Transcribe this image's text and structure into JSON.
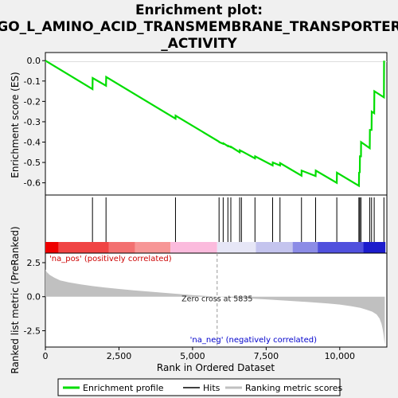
{
  "chart_data": {
    "type": "line",
    "title": "Enrichment plot: GO_L_AMINO_ACID_TRANSMEMBRANE_TRANSPORTER_ACTIVITY",
    "title_lines": [
      "Enrichment plot:",
      "GO_L_AMINO_ACID_TRANSMEMBRANE_TRANSPORTER",
      "_ACTIVITY"
    ],
    "xlabel": "Rank in Ordered Dataset",
    "xlim": [
      0,
      11600
    ],
    "x_ticks": [
      0,
      2500,
      5000,
      7500,
      10000
    ],
    "x_tick_labels": [
      "0",
      "2,500",
      "5,000",
      "7,500",
      "10,000"
    ],
    "es_panel": {
      "ylabel": "Enrichment score (ES)",
      "ylim": [
        -0.66,
        0.04
      ],
      "y_ticks": [
        0.0,
        -0.1,
        -0.2,
        -0.3,
        -0.4,
        -0.5,
        -0.6
      ],
      "y_tick_labels": [
        "0.0",
        "-0.1",
        "-0.2",
        "-0.3",
        "-0.4",
        "-0.5",
        "-0.6"
      ],
      "series": [
        {
          "name": "Enrichment profile",
          "color": "#00dd00",
          "x": [
            0,
            1600,
            1605,
            2060,
            2065,
            4420,
            4425,
            5900,
            5905,
            6040,
            6045,
            6200,
            6205,
            6300,
            6305,
            6600,
            6605,
            6660,
            6665,
            7120,
            7125,
            7720,
            7725,
            7970,
            7975,
            8700,
            8705,
            9180,
            9185,
            9900,
            9905,
            10650,
            10655,
            10680,
            10685,
            10720,
            10725,
            11020,
            11025,
            11080,
            11085,
            11170,
            11175,
            11500,
            11505
          ],
          "y": [
            0.0,
            -0.14,
            -0.085,
            -0.123,
            -0.08,
            -0.285,
            -0.27,
            -0.398,
            -0.4,
            -0.408,
            -0.406,
            -0.42,
            -0.418,
            -0.425,
            -0.423,
            -0.45,
            -0.44,
            -0.445,
            -0.444,
            -0.48,
            -0.47,
            -0.515,
            -0.5,
            -0.515,
            -0.503,
            -0.565,
            -0.54,
            -0.567,
            -0.54,
            -0.6,
            -0.55,
            -0.615,
            -0.55,
            -0.548,
            -0.47,
            -0.47,
            -0.4,
            -0.43,
            -0.34,
            -0.34,
            -0.25,
            -0.258,
            -0.15,
            -0.18,
            0.0
          ]
        }
      ]
    },
    "hits": [
      1600,
      2060,
      4420,
      5900,
      6040,
      6200,
      6300,
      6600,
      6660,
      7120,
      7720,
      7970,
      8700,
      9180,
      9900,
      10650,
      10680,
      10720,
      11020,
      11080,
      11170,
      11500
    ],
    "hits_legend": "Hits",
    "ranking_panel": {
      "ylabel": "Ranked list metric (PreRanked)",
      "ylim": [
        -3.7,
        3.2
      ],
      "y_ticks": [
        2.5,
        0.0,
        -2.5
      ],
      "y_tick_labels": [
        "2.5",
        "0.0",
        "-2.5"
      ],
      "series": [
        {
          "name": "Ranking metric scores",
          "color": "#c0c0c0",
          "x": [
            0,
            50,
            150,
            300,
            500,
            800,
            1200,
            1600,
            2000,
            2500,
            3000,
            3500,
            4000,
            4500,
            5000,
            5500,
            5835,
            6200,
            6800,
            7500,
            8200,
            9000,
            9600,
            10000,
            10400,
            10700,
            10900,
            11100,
            11250,
            11350,
            11420,
            11460,
            11490,
            11510,
            11530
          ],
          "y": [
            2.0,
            1.8,
            1.6,
            1.4,
            1.2,
            1.05,
            0.9,
            0.78,
            0.68,
            0.57,
            0.47,
            0.38,
            0.29,
            0.2,
            0.12,
            0.05,
            0.0,
            -0.05,
            -0.12,
            -0.2,
            -0.29,
            -0.4,
            -0.5,
            -0.58,
            -0.7,
            -0.82,
            -0.95,
            -1.1,
            -1.3,
            -1.6,
            -2.0,
            -2.4,
            -2.8,
            -3.2,
            -3.5
          ]
        }
      ],
      "zero_cross_label": "Zero cross at 5835",
      "zero_cross_x": 5835,
      "pos_label": "'na_pos' (positively correlated)",
      "neg_label": "'na_neg' (negatively correlated)"
    },
    "color_bar": {
      "segments": [
        {
          "x0": 0,
          "x1": 450,
          "color": "#ee0000"
        },
        {
          "x0": 450,
          "x1": 2150,
          "color": "#f04444"
        },
        {
          "x0": 2150,
          "x1": 3050,
          "color": "#f37070"
        },
        {
          "x0": 3050,
          "x1": 4250,
          "color": "#f79696"
        },
        {
          "x0": 4250,
          "x1": 5835,
          "color": "#fbbbdd"
        },
        {
          "x0": 5835,
          "x1": 7150,
          "color": "#e6e6f6"
        },
        {
          "x0": 7150,
          "x1": 8400,
          "color": "#c4c4ee"
        },
        {
          "x0": 8400,
          "x1": 9250,
          "color": "#8c8ce6"
        },
        {
          "x0": 9250,
          "x1": 10800,
          "color": "#5050dd"
        },
        {
          "x0": 10800,
          "x1": 11550,
          "color": "#1c1ccc"
        }
      ]
    },
    "legend": [
      {
        "label": "Enrichment profile",
        "color": "#00dd00"
      },
      {
        "label": "Hits",
        "color": "#000000"
      },
      {
        "label": "Ranking metric scores",
        "color": "#c0c0c0"
      }
    ]
  }
}
